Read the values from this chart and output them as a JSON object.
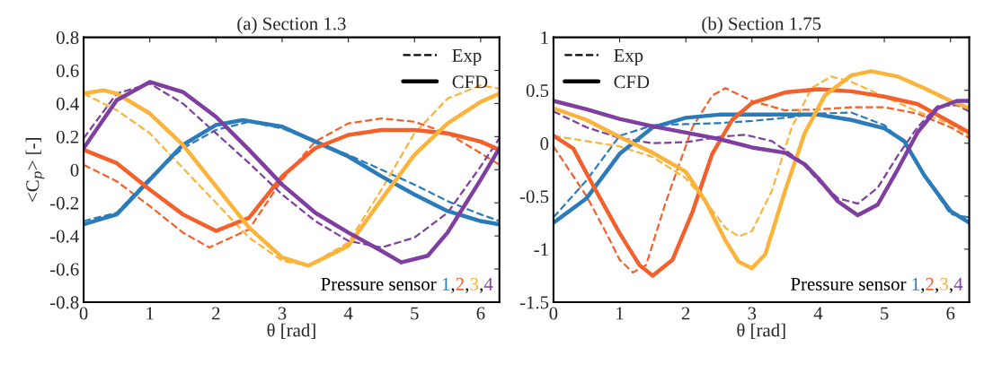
{
  "chart_data": [
    {
      "type": "line",
      "title": "(a) Section 1.3",
      "xlabel": "θ [rad]",
      "ylabel": "<C$_{p}$> [-]",
      "xlim": [
        0,
        6.2832
      ],
      "xticks": [
        0,
        1,
        2,
        3,
        4,
        5,
        6
      ],
      "ylim": [
        -0.8,
        0.8
      ],
      "yticks": [
        -0.8,
        -0.6,
        -0.4,
        -0.2,
        0,
        0.2,
        0.4,
        0.6,
        0.8
      ],
      "legend": "top right",
      "grid": false,
      "annotations": [
        "Pressure sensor",
        ",",
        ",",
        ","
      ],
      "series": [
        {
          "name": "Exp",
          "color": "#000000",
          "line_style": "dashed"
        },
        {
          "name": "CFD",
          "color": "#000000",
          "line_style": "solid"
        },
        {
          "color": "#2b7bba",
          "line_style": "dashed",
          "x": [
            0,
            0.5,
            1,
            1.5,
            2,
            2.5,
            3,
            3.5,
            4,
            4.5,
            5,
            5.5,
            6,
            6.2832
          ],
          "values": [
            -0.31,
            -0.26,
            -0.05,
            0.13,
            0.24,
            0.29,
            0.25,
            0.17,
            0.09,
            0,
            -0.09,
            -0.19,
            -0.27,
            -0.31
          ]
        },
        {
          "color": "#f4602c",
          "line_style": "dashed",
          "x": [
            0,
            0.5,
            1,
            1.5,
            1.9,
            2.5,
            3,
            3.5,
            4,
            4.5,
            5,
            5.5,
            6,
            6.2832
          ],
          "values": [
            0.03,
            -0.07,
            -0.22,
            -0.38,
            -0.47,
            -0.36,
            -0.06,
            0.17,
            0.28,
            0.31,
            0.29,
            0.22,
            0.1,
            0.03
          ]
        },
        {
          "color": "#fbb33a",
          "line_style": "dashed",
          "x": [
            0,
            0.5,
            1,
            1.5,
            2,
            2.5,
            3,
            3.4,
            4,
            4.5,
            5,
            5.5,
            6,
            6.2832
          ],
          "values": [
            0.46,
            0.36,
            0.22,
            0.01,
            -0.2,
            -0.41,
            -0.55,
            -0.58,
            -0.44,
            -0.12,
            0.22,
            0.43,
            0.51,
            0.49
          ]
        },
        {
          "color": "#7e3fa0",
          "line_style": "dashed",
          "x": [
            0,
            0.5,
            1,
            1.5,
            2,
            2.5,
            3,
            3.5,
            4,
            4.5,
            5,
            5.5,
            6,
            6.2832
          ],
          "values": [
            0.19,
            0.46,
            0.52,
            0.4,
            0.22,
            0.04,
            -0.15,
            -0.31,
            -0.43,
            -0.47,
            -0.41,
            -0.26,
            0.02,
            0.19
          ]
        },
        {
          "name": "1",
          "color": "#2b7bba",
          "line_style": "solid",
          "x": [
            0,
            0.5,
            1,
            1.5,
            2,
            2.4,
            3,
            3.5,
            4,
            4.5,
            5,
            5.5,
            6,
            6.2832
          ],
          "values": [
            -0.33,
            -0.27,
            -0.06,
            0.15,
            0.27,
            0.3,
            0.26,
            0.17,
            0.08,
            -0.04,
            -0.15,
            -0.25,
            -0.31,
            -0.33
          ]
        },
        {
          "name": "2",
          "color": "#f4602c",
          "line_style": "solid",
          "x": [
            0,
            0.5,
            1,
            1.5,
            2,
            2.5,
            3,
            3.5,
            4,
            4.5,
            5,
            5.5,
            6,
            6.2832
          ],
          "values": [
            0.12,
            0.04,
            -0.12,
            -0.27,
            -0.37,
            -0.29,
            -0.04,
            0.13,
            0.21,
            0.24,
            0.24,
            0.22,
            0.17,
            0.12
          ]
        },
        {
          "name": "3",
          "color": "#fbb33a",
          "line_style": "solid",
          "x": [
            0,
            0.3,
            0.5,
            1,
            1.5,
            2,
            2.5,
            3,
            3.4,
            4,
            4.5,
            5,
            5.5,
            6,
            6.2832
          ],
          "values": [
            0.46,
            0.48,
            0.46,
            0.34,
            0.15,
            -0.1,
            -0.35,
            -0.53,
            -0.58,
            -0.46,
            -0.18,
            0.09,
            0.28,
            0.41,
            0.46
          ]
        },
        {
          "name": "4",
          "color": "#7e3fa0",
          "line_style": "solid",
          "x": [
            0,
            0.5,
            1,
            1.5,
            2,
            2.5,
            3,
            3.5,
            4,
            4.5,
            4.8,
            5.2,
            5.5,
            6,
            6.2832
          ],
          "values": [
            0.13,
            0.42,
            0.53,
            0.47,
            0.32,
            0.12,
            -0.09,
            -0.26,
            -0.38,
            -0.49,
            -0.56,
            -0.52,
            -0.38,
            -0.06,
            0.13
          ]
        }
      ]
    },
    {
      "type": "line",
      "title": "(b) Section 1.75",
      "xlabel": "θ [rad]",
      "xlim": [
        0,
        6.2832
      ],
      "xticks": [
        0,
        1,
        2,
        3,
        4,
        5,
        6
      ],
      "ylim": [
        -1.5,
        1
      ],
      "yticks": [
        -1.5,
        -1,
        -0.5,
        0,
        0.5,
        1
      ],
      "legend": "top left",
      "grid": false,
      "annotations": [
        "Pressure sensor",
        ",",
        ",",
        ","
      ],
      "series": [
        {
          "name": "Exp",
          "color": "#000000",
          "line_style": "dashed"
        },
        {
          "name": "CFD",
          "color": "#000000",
          "line_style": "solid"
        },
        {
          "color": "#2b7bba",
          "line_style": "dashed",
          "x": [
            0,
            0.5,
            1,
            1.5,
            2,
            2.5,
            3,
            3.5,
            4,
            4.5,
            5,
            5.3,
            5.6,
            6,
            6.2832
          ],
          "values": [
            -0.7,
            -0.35,
            0.07,
            0.17,
            0.18,
            0.19,
            0.21,
            0.24,
            0.28,
            0.29,
            0.17,
            0,
            -0.3,
            -0.67,
            -0.7
          ]
        },
        {
          "color": "#f4602c",
          "line_style": "dashed",
          "x": [
            0,
            0.5,
            0.8,
            1,
            1.2,
            1.4,
            1.7,
            2.1,
            2.4,
            2.6,
            3,
            3.5,
            4,
            4.5,
            5,
            5.5,
            6,
            6.2832
          ],
          "values": [
            -0.03,
            -0.5,
            -0.85,
            -1.1,
            -1.22,
            -1.15,
            -0.55,
            0.15,
            0.45,
            0.52,
            0.4,
            0.31,
            0.32,
            0.34,
            0.34,
            0.28,
            0.15,
            0.05
          ]
        },
        {
          "color": "#fbb33a",
          "line_style": "dashed",
          "x": [
            0,
            0.5,
            1,
            1.5,
            2,
            2.3,
            2.6,
            2.8,
            3,
            3.3,
            3.6,
            3.9,
            4.2,
            4.5,
            5,
            5.5,
            6,
            6.2832
          ],
          "values": [
            0.07,
            0.02,
            -0.03,
            -0.13,
            -0.33,
            -0.55,
            -0.8,
            -0.88,
            -0.83,
            -0.45,
            0.15,
            0.52,
            0.63,
            0.58,
            0.44,
            0.3,
            0.18,
            0.07
          ]
        },
        {
          "color": "#7e3fa0",
          "line_style": "dashed",
          "x": [
            0,
            0.5,
            1,
            1.5,
            2,
            2.5,
            2.9,
            3.3,
            3.7,
            4,
            4.3,
            4.6,
            4.9,
            5.2,
            5.5,
            5.8,
            6.1,
            6.2832
          ],
          "values": [
            0.3,
            0.15,
            0.05,
            0,
            0.01,
            0.06,
            0.08,
            0.02,
            -0.15,
            -0.35,
            -0.52,
            -0.57,
            -0.42,
            -0.12,
            0.15,
            0.35,
            0.36,
            0.3
          ]
        },
        {
          "name": "1",
          "color": "#2b7bba",
          "line_style": "solid",
          "x": [
            0,
            0.5,
            1,
            1.5,
            2,
            2.5,
            3,
            3.5,
            4,
            4.5,
            5,
            5.3,
            5.6,
            6,
            6.2832
          ],
          "values": [
            -0.75,
            -0.52,
            -0.1,
            0.15,
            0.24,
            0.27,
            0.27,
            0.27,
            0.27,
            0.22,
            0.14,
            0.02,
            -0.3,
            -0.64,
            -0.75
          ]
        },
        {
          "name": "2",
          "color": "#f4602c",
          "line_style": "solid",
          "x": [
            0,
            0.3,
            0.6,
            1,
            1.3,
            1.5,
            1.8,
            2.1,
            2.4,
            2.7,
            3,
            3.5,
            4,
            4.5,
            5,
            5.5,
            6,
            6.2832
          ],
          "values": [
            0.07,
            -0.05,
            -0.4,
            -0.85,
            -1.15,
            -1.25,
            -1.1,
            -0.65,
            -0.1,
            0.22,
            0.38,
            0.48,
            0.51,
            0.49,
            0.44,
            0.37,
            0.2,
            0.1
          ]
        },
        {
          "name": "3",
          "color": "#fbb33a",
          "line_style": "solid",
          "x": [
            0,
            0.5,
            1,
            1.5,
            2,
            2.3,
            2.6,
            2.8,
            3,
            3.2,
            3.5,
            3.8,
            4.1,
            4.5,
            4.8,
            5.2,
            5.6,
            6,
            6.2832
          ],
          "values": [
            0.33,
            0.22,
            0.06,
            -0.09,
            -0.27,
            -0.55,
            -0.92,
            -1.12,
            -1.18,
            -1.05,
            -0.45,
            0.1,
            0.45,
            0.64,
            0.68,
            0.63,
            0.52,
            0.4,
            0.33
          ]
        },
        {
          "name": "4",
          "color": "#7e3fa0",
          "line_style": "solid",
          "x": [
            0,
            0.5,
            1,
            1.5,
            2,
            2.5,
            3,
            3.5,
            3.8,
            4,
            4.3,
            4.6,
            4.9,
            5.2,
            5.5,
            5.8,
            6.1,
            6.2832
          ],
          "values": [
            0.4,
            0.32,
            0.23,
            0.16,
            0.1,
            0.04,
            -0.04,
            -0.09,
            -0.2,
            -0.33,
            -0.55,
            -0.68,
            -0.58,
            -0.25,
            0.1,
            0.33,
            0.4,
            0.4
          ]
        }
      ]
    }
  ]
}
